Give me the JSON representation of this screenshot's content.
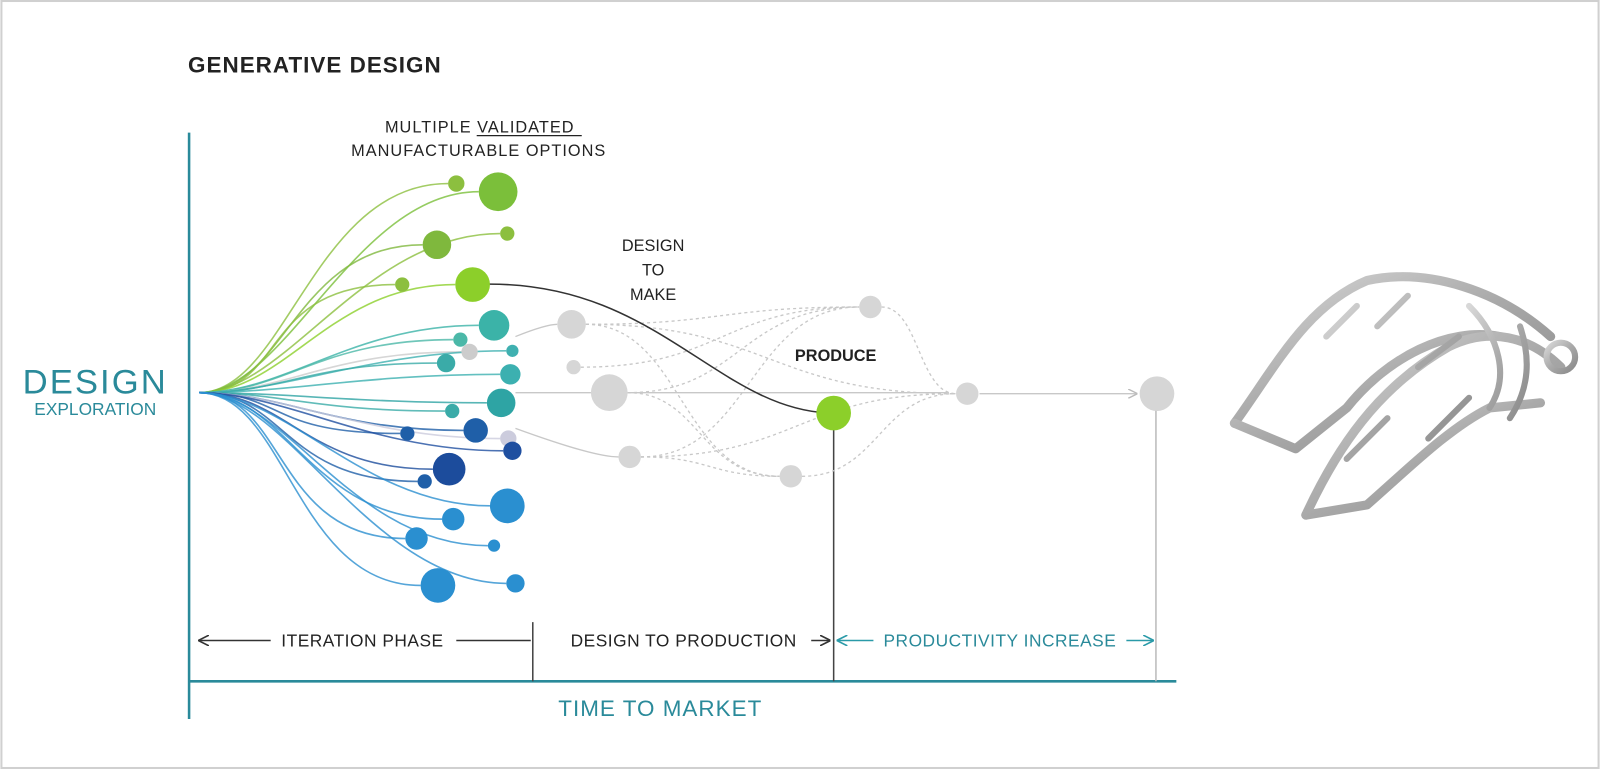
{
  "title": "GENERATIVE DESIGN",
  "axis": {
    "y_label": [
      "DESIGN",
      "EXPLORATION"
    ],
    "x_label": "TIME TO MARKET"
  },
  "annotations": {
    "options": [
      [
        "MULTIPLE",
        "VALIDATED"
      ],
      "MANUFACTURABLE OPTIONS"
    ],
    "design_to_make": [
      "DESIGN",
      "TO",
      "MAKE"
    ],
    "produce": "PRODUCE"
  },
  "phases": [
    "ITERATION PHASE",
    "DESIGN TO PRODUCTION",
    "PRODUCTIVITY INCREASE"
  ]
}
